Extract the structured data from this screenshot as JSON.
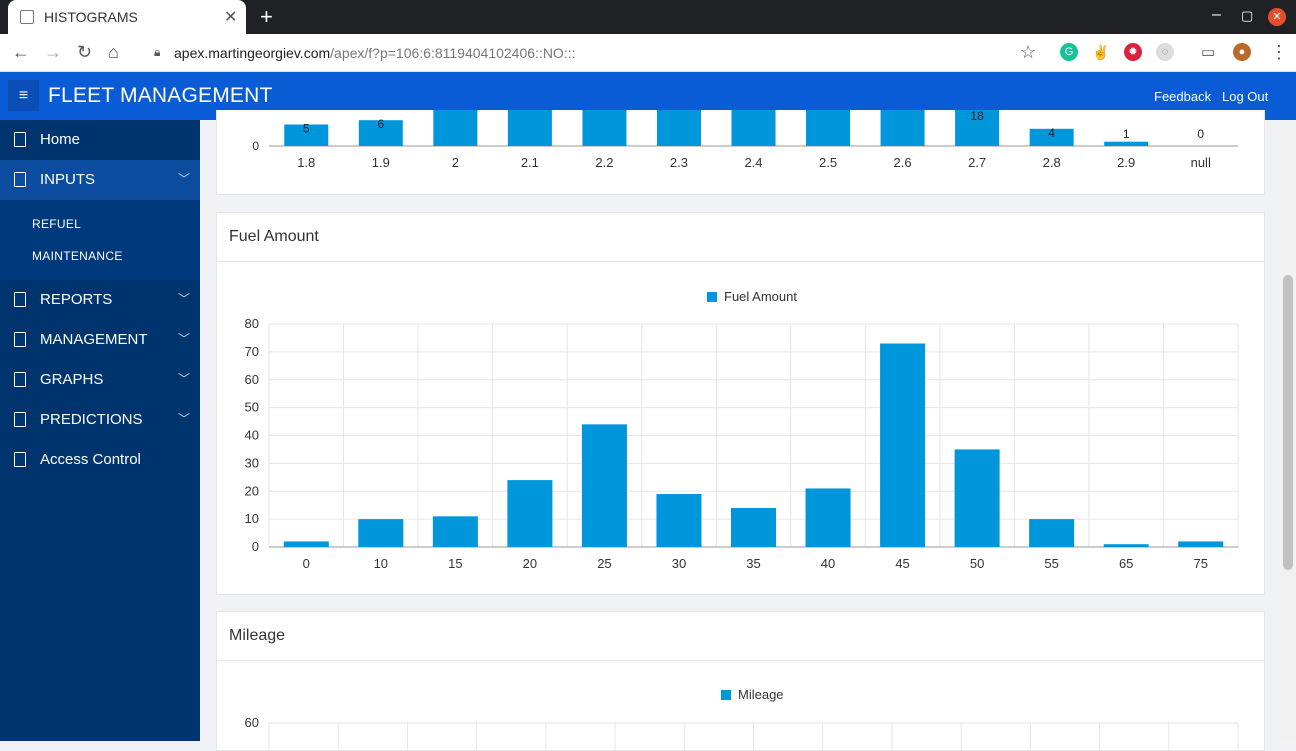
{
  "browser": {
    "tab_title": "HISTOGRAMS",
    "url_host": "apex.martingeorgiev.com",
    "url_path": "/apex/f?p=106:6:8119404102406::NO:::"
  },
  "header": {
    "title": "FLEET MANAGEMENT",
    "feedback": "Feedback",
    "logout": "Log Out"
  },
  "sidebar": {
    "items": [
      {
        "label": "Home"
      },
      {
        "label": "INPUTS"
      },
      {
        "label": "REPORTS"
      },
      {
        "label": "MANAGEMENT"
      },
      {
        "label": "GRAPHS"
      },
      {
        "label": "PREDICTIONS"
      },
      {
        "label": "Access Control"
      }
    ],
    "subitems": [
      {
        "label": "REFUEL"
      },
      {
        "label": "MAINTENANCE"
      }
    ]
  },
  "regions": {
    "fuel_title": "Fuel Amount",
    "mileage_title": "Mileage"
  },
  "colors": {
    "bar": "#0096db",
    "header": "#0a5bd6",
    "sidebar": "#00346f"
  },
  "chart_data": [
    {
      "type": "bar",
      "title": "",
      "categories": [
        "1.8",
        "1.9",
        "2",
        "2.1",
        "2.2",
        "2.3",
        "2.4",
        "2.5",
        "2.6",
        "2.7",
        "2.8",
        "2.9",
        "null"
      ],
      "values": [
        5,
        6,
        null,
        null,
        null,
        null,
        null,
        null,
        null,
        18,
        4,
        1,
        0
      ],
      "data_labels": [
        "5",
        "6",
        "",
        "",
        "",
        "",
        "",
        "",
        "",
        "18",
        "4",
        "1",
        "0"
      ],
      "y_ticks": [
        "0"
      ],
      "note": "partially scrolled out of view; only the bottom of the chart is visible"
    },
    {
      "type": "bar",
      "title": "Fuel Amount",
      "legend": "Fuel Amount",
      "categories": [
        "0",
        "10",
        "15",
        "20",
        "25",
        "30",
        "35",
        "40",
        "45",
        "50",
        "55",
        "65",
        "75"
      ],
      "values": [
        2,
        10,
        11,
        24,
        44,
        19,
        14,
        21,
        73,
        35,
        10,
        1,
        2
      ],
      "ylim": [
        0,
        80
      ],
      "y_ticks": [
        "0",
        "10",
        "20",
        "30",
        "40",
        "50",
        "60",
        "70",
        "80"
      ]
    },
    {
      "type": "bar",
      "title": "Mileage",
      "legend": "Mileage",
      "categories": [],
      "values": [],
      "ylim": [
        0,
        60
      ],
      "y_ticks": [
        "60"
      ],
      "note": "cut off at bottom of viewport"
    }
  ]
}
